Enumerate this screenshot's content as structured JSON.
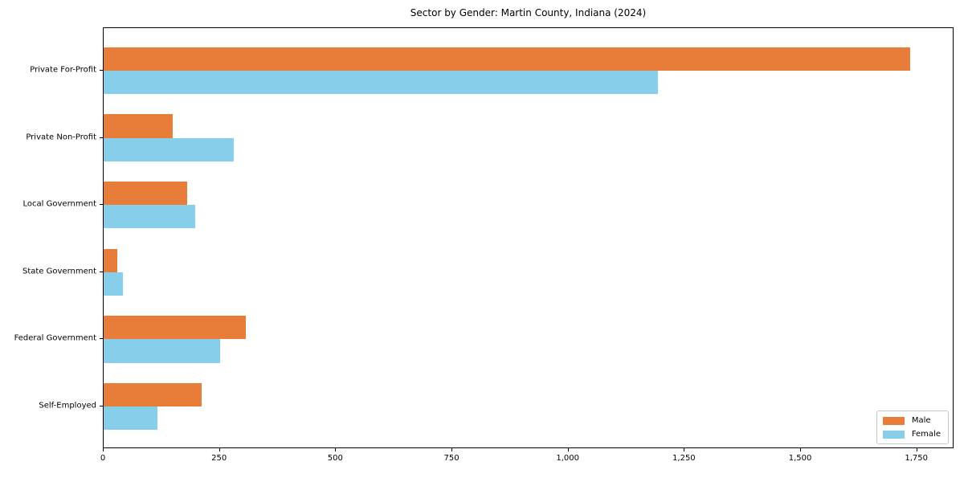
{
  "chart_data": {
    "type": "bar",
    "orientation": "horizontal",
    "title": "Sector by Gender: Martin County, Indiana (2024)",
    "xlabel": "",
    "ylabel": "",
    "categories": [
      "Private For-Profit",
      "Private Non-Profit",
      "Local Government",
      "State Government",
      "Federal Government",
      "Self-Employed"
    ],
    "series": [
      {
        "name": "Male",
        "color": "#e87d3a",
        "values": [
          1738,
          149,
          180,
          30,
          306,
          211
        ]
      },
      {
        "name": "Female",
        "color": "#87ceeb",
        "values": [
          1195,
          280,
          197,
          41,
          251,
          116
        ]
      }
    ],
    "xlim": [
      0,
      1830
    ],
    "xticks": [
      0,
      250,
      500,
      750,
      1000,
      1250,
      1500,
      1750
    ],
    "xtick_labels": [
      "0",
      "250",
      "500",
      "750",
      "1,000",
      "1,250",
      "1,500",
      "1,750"
    ],
    "grid": false,
    "background_color": "#ffffff",
    "axis_color": "#000000",
    "legend": {
      "position": "lower right",
      "entries": [
        "Male",
        "Female"
      ]
    }
  }
}
